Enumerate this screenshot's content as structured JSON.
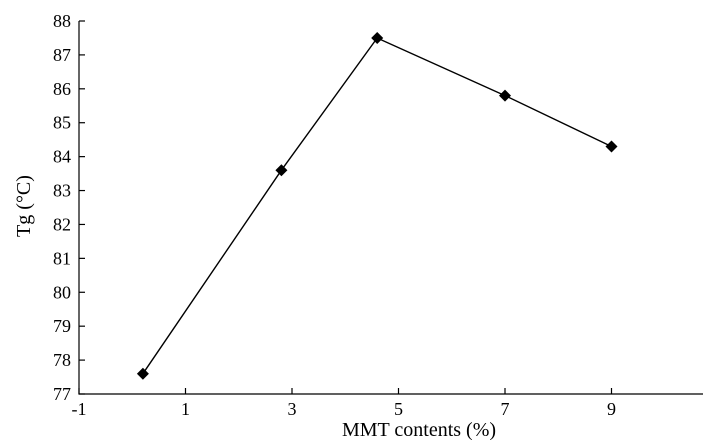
{
  "chart_data": {
    "type": "line",
    "title": "",
    "xlabel": "MMT contents (%)",
    "ylabel": "Tg (°C)",
    "xlim": [
      -1,
      11
    ],
    "ylim": [
      77,
      88
    ],
    "x_ticks": [
      -1,
      1,
      3,
      5,
      7,
      9
    ],
    "y_ticks": [
      77,
      78,
      79,
      80,
      81,
      82,
      83,
      84,
      85,
      86,
      87,
      88
    ],
    "grid": false,
    "legend": "none",
    "series": [
      {
        "marker": "diamond",
        "color": "#000000",
        "x": [
          0.2,
          2.8,
          4.6,
          7.0,
          9.0
        ],
        "y": [
          77.6,
          83.6,
          87.5,
          85.8,
          84.3
        ]
      }
    ]
  }
}
